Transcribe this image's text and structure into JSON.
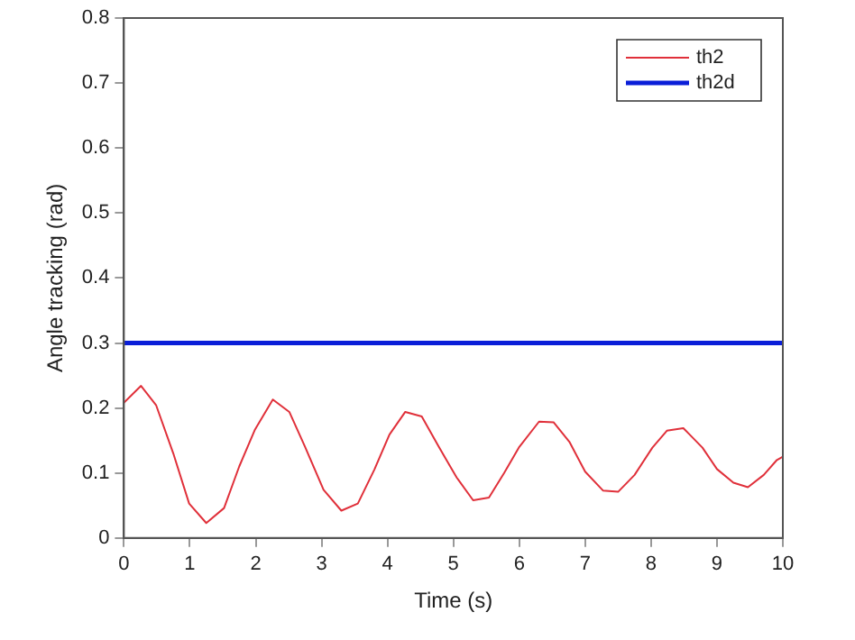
{
  "chart_data": {
    "type": "line",
    "xlabel": "Time (s)",
    "ylabel": "Angle tracking (rad)",
    "xlim": [
      0,
      10
    ],
    "xticks": [
      0,
      1,
      2,
      3,
      4,
      5,
      6,
      7,
      8,
      9,
      10
    ],
    "ylim": [
      0,
      0.8
    ],
    "yticks": [
      0,
      0.1,
      0.2,
      0.3,
      0.4,
      0.5,
      0.6,
      0.7,
      0.8
    ],
    "grid": false,
    "legend": "top right",
    "marker": "none",
    "series": [
      {
        "name": "th2",
        "color": "#e0303a",
        "x": [
          0,
          0.26,
          0.49,
          0.75,
          0.99,
          1.25,
          1.52,
          1.75,
          1.99,
          2.26,
          2.51,
          2.75,
          3.03,
          3.3,
          3.55,
          3.8,
          4.03,
          4.27,
          4.52,
          4.78,
          5.05,
          5.3,
          5.54,
          5.77,
          6.0,
          6.3,
          6.52,
          6.76,
          7.0,
          7.27,
          7.5,
          7.75,
          8.02,
          8.24,
          8.49,
          8.78,
          9.0,
          9.25,
          9.47,
          9.71,
          9.91,
          10
        ],
        "values": [
          0.208,
          0.234,
          0.204,
          0.13,
          0.053,
          0.023,
          0.046,
          0.11,
          0.167,
          0.213,
          0.194,
          0.14,
          0.074,
          0.042,
          0.053,
          0.105,
          0.159,
          0.194,
          0.187,
          0.14,
          0.093,
          0.058,
          0.062,
          0.1,
          0.14,
          0.179,
          0.178,
          0.148,
          0.102,
          0.073,
          0.071,
          0.097,
          0.139,
          0.165,
          0.169,
          0.139,
          0.106,
          0.085,
          0.078,
          0.097,
          0.12,
          0.125
        ]
      },
      {
        "name": "th2d",
        "color": "#0a1ed8",
        "x": [
          0,
          10
        ],
        "values": [
          0.3,
          0.3
        ]
      }
    ]
  }
}
